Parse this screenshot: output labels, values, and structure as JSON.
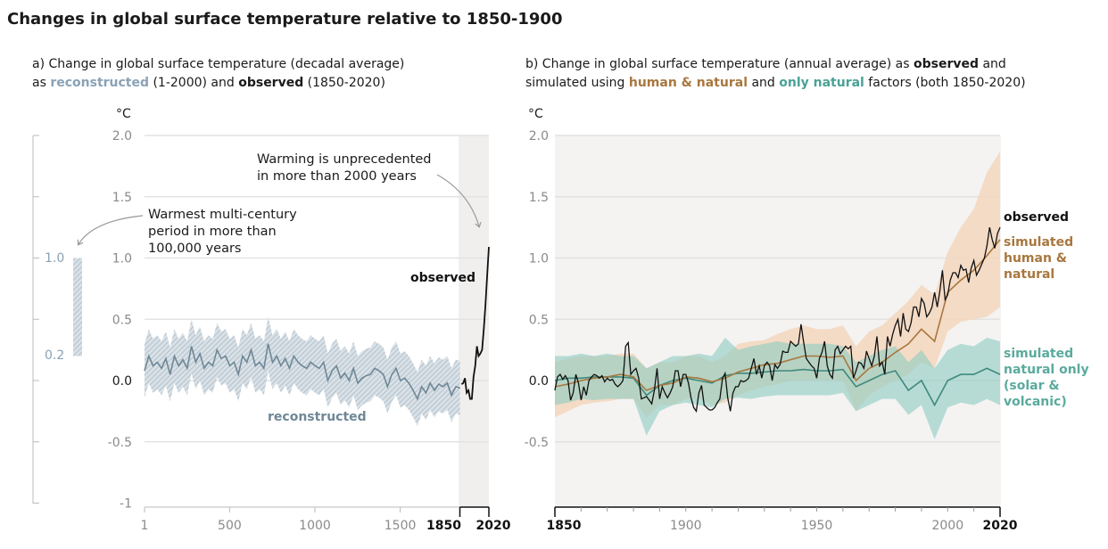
{
  "title": "Changes in global surface temperature relative to 1850-1900",
  "colors": {
    "reconstructed_band": "#d6dfe6",
    "reconstructed_line": "#6f8796",
    "reconstructed_text": "#8aa2b6",
    "observed": "#111111",
    "human_natural_band": "#f3d6bd",
    "human_natural_line": "#a8773e",
    "natural_band": "#8ccbc1",
    "natural_line": "#3e8a7c",
    "panel_background": "#f4f3f2"
  },
  "panel_a": {
    "subtitle_line1": "a) Change in global surface temperature (decadal average)",
    "subtitle_as": "as ",
    "subtitle_reconstructed": "reconstructed",
    "subtitle_mid": " (1-2000) and ",
    "subtitle_observed": "observed",
    "subtitle_end": " (1850-2020)",
    "annotation_warming_1": "Warming is unprecedented",
    "annotation_warming_2": "in more than 2000 years",
    "annotation_warmest_1": "Warmest multi-century",
    "annotation_warmest_2": "period in more than",
    "annotation_warmest_3": "100,000 years",
    "side_bar_range": [
      0.2,
      1.0
    ],
    "side_bar_labels": [
      "1.0",
      "0.2"
    ]
  },
  "panel_b": {
    "subtitle_line1_a": "b) Change in global surface temperature (annual average) as ",
    "subtitle_line1_observed": "observed",
    "subtitle_line1_end": " and",
    "subtitle_line2_a": "simulated using ",
    "subtitle_line2_hn": "human & natural",
    "subtitle_line2_mid": " and ",
    "subtitle_line2_nat": "only natural",
    "subtitle_line2_end": " factors (both 1850-2020)"
  },
  "chart_data": [
    {
      "type": "line",
      "ylabel": "°C",
      "ylim": [
        -1,
        2
      ],
      "yticks": [
        "2.0",
        "1.5",
        "1.0",
        "0.5",
        "0.0",
        "-0.5",
        "-1"
      ],
      "xlim": [
        1,
        2020
      ],
      "xticks": [
        "1",
        "500",
        "1000",
        "1500"
      ],
      "xticks_bold": [
        "1850",
        "2020"
      ],
      "highlight_range": [
        1850,
        2020
      ],
      "grid": true,
      "series": [
        {
          "name": "reconstructed",
          "x_start": 1,
          "x_step": 25,
          "values": [
            0.08,
            0.2,
            0.12,
            0.15,
            0.1,
            0.18,
            0.05,
            0.2,
            0.12,
            0.17,
            0.1,
            0.28,
            0.15,
            0.22,
            0.1,
            0.15,
            0.12,
            0.25,
            0.18,
            0.2,
            0.12,
            0.15,
            0.05,
            0.2,
            0.15,
            0.25,
            0.12,
            0.15,
            0.1,
            0.3,
            0.15,
            0.2,
            0.12,
            0.18,
            0.1,
            0.2,
            0.15,
            0.12,
            0.1,
            0.15,
            0.12,
            0.1,
            0.15,
            0.0,
            0.08,
            0.12,
            0.02,
            0.06,
            0.0,
            0.1,
            -0.02,
            0.02,
            0.04,
            0.05,
            0.1,
            0.08,
            0.05,
            -0.05,
            0.05,
            0.1,
            0.0,
            0.02,
            -0.02,
            -0.08,
            -0.15,
            -0.05,
            -0.1,
            -0.02,
            -0.08,
            -0.03,
            -0.05,
            -0.02,
            -0.12,
            -0.05,
            -0.06
          ],
          "uncertainty_halfwidth": 0.22
        },
        {
          "name": "observed",
          "x": [
            1860,
            1870,
            1880,
            1890,
            1900,
            1910,
            1920,
            1930,
            1940,
            1950,
            1960,
            1970,
            1980,
            1990,
            2000,
            2010,
            2020
          ],
          "values": [
            -0.03,
            -0.02,
            0.02,
            -0.1,
            -0.08,
            -0.15,
            -0.15,
            0.03,
            0.12,
            0.28,
            0.2,
            0.22,
            0.25,
            0.42,
            0.62,
            0.86,
            1.09
          ]
        }
      ]
    },
    {
      "type": "line",
      "ylabel": "°C",
      "ylim": [
        -1,
        2
      ],
      "yticks": [
        "2.0",
        "1.5",
        "1.0",
        "0.5",
        "0.0",
        "-0.5"
      ],
      "xlim": [
        1850,
        2020
      ],
      "xticks": [
        "1900",
        "1950",
        "2000"
      ],
      "xticks_bold": [
        "1850",
        "2020"
      ],
      "grid": true,
      "series": [
        {
          "name": "observed",
          "x_start": 1850,
          "x_step": 1,
          "values": [
            -0.08,
            0.03,
            0.05,
            0.01,
            0.04,
            0.0,
            -0.16,
            -0.1,
            0.05,
            -0.02,
            -0.16,
            -0.05,
            -0.12,
            0.0,
            0.03,
            0.05,
            0.04,
            0.02,
            0.04,
            -0.01,
            0.02,
            0.0,
            0.01,
            -0.03,
            -0.05,
            -0.03,
            0.0,
            0.28,
            0.31,
            0.05,
            0.08,
            0.1,
            0.02,
            -0.15,
            -0.14,
            -0.13,
            -0.16,
            -0.19,
            -0.08,
            0.1,
            -0.15,
            -0.05,
            -0.1,
            -0.14,
            -0.1,
            -0.05,
            0.08,
            0.08,
            -0.05,
            0.05,
            0.05,
            -0.02,
            -0.14,
            -0.22,
            -0.25,
            -0.1,
            -0.04,
            -0.2,
            -0.22,
            -0.24,
            -0.24,
            -0.22,
            -0.18,
            -0.15,
            0.02,
            0.06,
            -0.14,
            -0.25,
            -0.1,
            -0.05,
            -0.05,
            0.0,
            -0.01,
            0.0,
            0.02,
            0.1,
            0.18,
            0.05,
            0.12,
            0.02,
            0.12,
            0.15,
            0.12,
            0.0,
            0.13,
            0.1,
            0.13,
            0.24,
            0.23,
            0.23,
            0.32,
            0.3,
            0.28,
            0.3,
            0.46,
            0.31,
            0.18,
            0.15,
            0.12,
            0.1,
            0.02,
            0.18,
            0.23,
            0.32,
            0.12,
            0.05,
            0.02,
            0.25,
            0.28,
            0.22,
            0.25,
            0.28,
            0.26,
            0.28,
            0.02,
            0.08,
            0.15,
            0.14,
            0.1,
            0.24,
            0.18,
            0.12,
            0.2,
            0.36,
            0.12,
            0.15,
            0.05,
            0.36,
            0.28,
            0.38,
            0.45,
            0.5,
            0.36,
            0.55,
            0.42,
            0.4,
            0.47,
            0.6,
            0.6,
            0.52,
            0.67,
            0.63,
            0.52,
            0.55,
            0.6,
            0.72,
            0.6,
            0.73,
            0.9,
            0.66,
            0.7,
            0.82,
            0.88,
            0.88,
            0.84,
            0.94,
            0.9,
            0.91,
            0.8,
            0.92,
            0.98,
            0.86,
            0.9,
            0.95,
            1.0,
            1.1,
            1.25,
            1.15,
            1.08,
            1.2,
            1.25
          ]
        },
        {
          "name": "simulated human & natural",
          "x_start": 1850,
          "x_step": 5,
          "values": [
            -0.05,
            -0.03,
            0.0,
            0.02,
            0.03,
            0.05,
            0.03,
            -0.08,
            -0.04,
            -0.02,
            0.03,
            0.02,
            -0.01,
            0.02,
            0.07,
            0.1,
            0.13,
            0.14,
            0.17,
            0.2,
            0.2,
            0.19,
            0.2,
            0.0,
            0.1,
            0.15,
            0.23,
            0.3,
            0.42,
            0.32,
            0.72,
            0.82,
            0.9,
            1.02,
            1.15
          ],
          "lower": [
            -0.3,
            -0.25,
            -0.2,
            -0.18,
            -0.17,
            -0.15,
            -0.15,
            -0.3,
            -0.2,
            -0.2,
            -0.15,
            -0.15,
            -0.2,
            -0.18,
            -0.12,
            -0.08,
            -0.05,
            -0.03,
            0.0,
            0.0,
            0.0,
            0.0,
            0.0,
            -0.25,
            -0.12,
            -0.05,
            0.0,
            0.05,
            0.15,
            0.1,
            0.4,
            0.48,
            0.5,
            0.52,
            0.6
          ],
          "upper": [
            0.15,
            0.18,
            0.2,
            0.2,
            0.2,
            0.22,
            0.22,
            0.1,
            0.15,
            0.15,
            0.2,
            0.2,
            0.15,
            0.2,
            0.3,
            0.32,
            0.33,
            0.38,
            0.42,
            0.45,
            0.42,
            0.42,
            0.45,
            0.28,
            0.4,
            0.45,
            0.55,
            0.65,
            0.78,
            0.7,
            1.05,
            1.25,
            1.4,
            1.7,
            1.87
          ]
        },
        {
          "name": "simulated natural only (solar & volcanic)",
          "x_start": 1850,
          "x_step": 5,
          "values": [
            0.0,
            0.02,
            0.02,
            0.03,
            0.03,
            0.03,
            0.02,
            -0.12,
            -0.04,
            0.0,
            0.02,
            0.0,
            -0.02,
            0.04,
            0.06,
            0.06,
            0.07,
            0.08,
            0.08,
            0.09,
            0.08,
            0.08,
            0.09,
            -0.05,
            0.0,
            0.05,
            0.08,
            -0.08,
            0.0,
            -0.2,
            0.0,
            0.05,
            0.05,
            0.1,
            0.05
          ],
          "lower": [
            -0.2,
            -0.18,
            -0.15,
            -0.16,
            -0.15,
            -0.15,
            -0.15,
            -0.45,
            -0.25,
            -0.2,
            -0.18,
            -0.2,
            -0.22,
            -0.15,
            -0.14,
            -0.15,
            -0.13,
            -0.12,
            -0.12,
            -0.12,
            -0.12,
            -0.12,
            -0.1,
            -0.25,
            -0.2,
            -0.15,
            -0.15,
            -0.28,
            -0.2,
            -0.48,
            -0.22,
            -0.18,
            -0.2,
            -0.15,
            -0.2
          ],
          "upper": [
            0.2,
            0.2,
            0.22,
            0.2,
            0.22,
            0.2,
            0.2,
            0.1,
            0.15,
            0.2,
            0.2,
            0.22,
            0.2,
            0.35,
            0.25,
            0.28,
            0.3,
            0.32,
            0.3,
            0.3,
            0.3,
            0.3,
            0.28,
            0.15,
            0.2,
            0.25,
            0.28,
            0.15,
            0.25,
            0.1,
            0.25,
            0.3,
            0.28,
            0.35,
            0.32
          ]
        }
      ],
      "series_labels": {
        "observed": "observed",
        "human_natural": [
          "simulated",
          "human &",
          "natural"
        ],
        "natural": [
          "simulated",
          "natural only",
          "(solar &",
          "volcanic)"
        ]
      }
    }
  ]
}
